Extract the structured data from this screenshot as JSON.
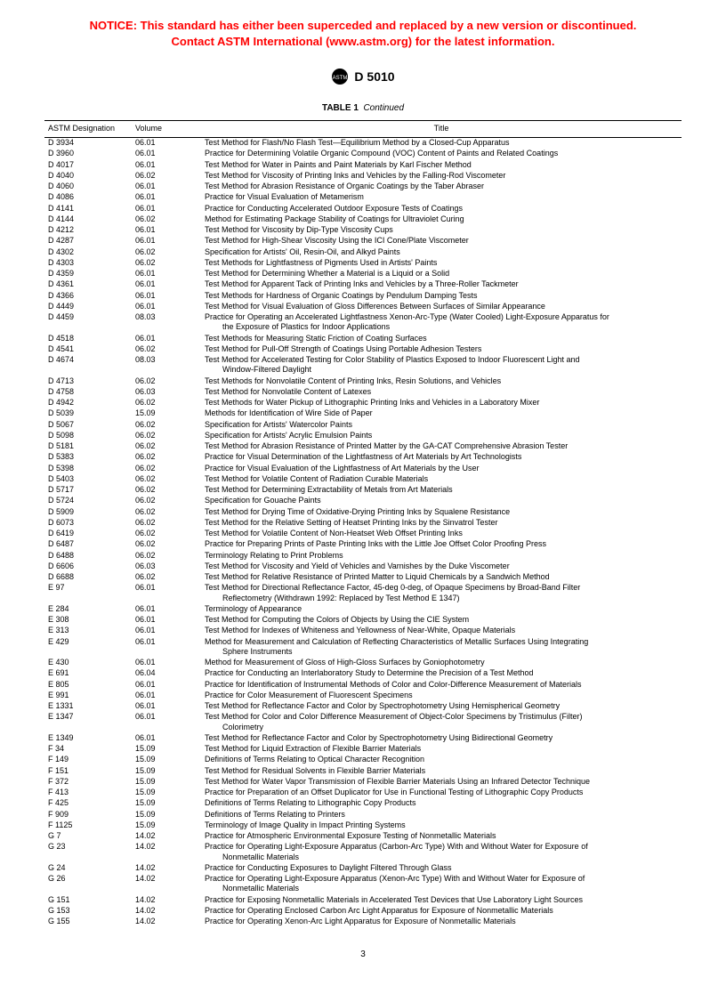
{
  "notice": {
    "line1": "NOTICE: This standard has either been superceded and replaced by a new version or discontinued.",
    "line2": "Contact ASTM International (www.astm.org) for the latest information."
  },
  "standard_number": "D 5010",
  "table_caption_label": "TABLE  1",
  "table_caption_suffix": "Continued",
  "columns": {
    "designation": "ASTM Designation",
    "volume": "Volume",
    "title": "Title"
  },
  "rows": [
    {
      "d": "D 3934",
      "v": "06.01",
      "t": "Test Method for Flash/No Flash Test—Equilibrium Method by a Closed-Cup Apparatus"
    },
    {
      "d": "D 3960",
      "v": "06.01",
      "t": "Practice for Determining Volatile Organic Compound (VOC) Content of Paints and Related Coatings"
    },
    {
      "d": "D 4017",
      "v": "06.01",
      "t": "Test Method for Water in Paints and Paint Materials by Karl Fischer Method"
    },
    {
      "d": "D 4040",
      "v": "06.02",
      "t": "Test Method for Viscosity of Printing Inks and Vehicles by the Falling-Rod Viscometer"
    },
    {
      "d": "D 4060",
      "v": "06.01",
      "t": "Test Method for Abrasion Resistance of Organic Coatings by the Taber Abraser"
    },
    {
      "d": "D 4086",
      "v": "06.01",
      "t": "Practice for Visual Evaluation of Metamerism"
    },
    {
      "d": "D 4141",
      "v": "06.01",
      "t": "Practice for Conducting Accelerated Outdoor Exposure Tests of Coatings"
    },
    {
      "d": "D 4144",
      "v": "06.02",
      "t": "Method for Estimating Package Stability of Coatings for Ultraviolet Curing"
    },
    {
      "d": "D 4212",
      "v": "06.01",
      "t": "Test Method for Viscosity by Dip-Type Viscosity Cups"
    },
    {
      "d": "D 4287",
      "v": "06.01",
      "t": "Test Method for High-Shear Viscosity Using the ICI Cone/Plate Viscometer"
    },
    {
      "d": "D 4302",
      "v": "06.02",
      "t": "Specification for Artists' Oil, Resin-Oil, and Alkyd Paints"
    },
    {
      "d": "D 4303",
      "v": "06.02",
      "t": "Test Methods for Lightfastness of Pigments Used in Artists' Paints"
    },
    {
      "d": "D 4359",
      "v": "06.01",
      "t": "Test Method for Determining Whether a Material is a Liquid or a Solid"
    },
    {
      "d": "D 4361",
      "v": "06.01",
      "t": "Test Method for Apparent Tack of Printing Inks and Vehicles by a Three-Roller Tackmeter"
    },
    {
      "d": "D 4366",
      "v": "06.01",
      "t": "Test Methods for Hardness of Organic Coatings by Pendulum Damping Tests"
    },
    {
      "d": "D 4449",
      "v": "06.01",
      "t": "Test Method for Visual Evaluation of Gloss Differences Between Surfaces of Similar Appearance"
    },
    {
      "d": "D 4459",
      "v": "08.03",
      "t": "Practice for Operating an Accelerated Lightfastness Xenon-Arc-Type (Water Cooled) Light-Exposure Apparatus for",
      "t2": "the Exposure of Plastics for Indoor Applications"
    },
    {
      "d": "D 4518",
      "v": "06.01",
      "t": "Test Methods for Measuring Static Friction of Coating Surfaces"
    },
    {
      "d": "D 4541",
      "v": "06.02",
      "t": "Test Method for Pull-Off Strength of Coatings Using Portable Adhesion Testers"
    },
    {
      "d": "D 4674",
      "v": "08.03",
      "t": "Test Method for Accelerated Testing for Color Stability of Plastics Exposed to Indoor Fluorescent Light and",
      "t2": "Window-Filtered Daylight"
    },
    {
      "d": "D 4713",
      "v": "06.02",
      "t": "Test Methods for Nonvolatile Content of Printing Inks, Resin Solutions, and Vehicles"
    },
    {
      "d": "D 4758",
      "v": "06.03",
      "t": "Test Method for Nonvolatile Content of Latexes"
    },
    {
      "d": "D 4942",
      "v": "06.02",
      "t": "Test Methods for Water Pickup of Lithographic Printing Inks and Vehicles in a Laboratory Mixer"
    },
    {
      "d": "D 5039",
      "v": "15.09",
      "t": "Methods for Identification of Wire Side of Paper"
    },
    {
      "d": "D 5067",
      "v": "06.02",
      "t": "Specification for Artists' Watercolor Paints"
    },
    {
      "d": "D 5098",
      "v": "06.02",
      "t": "Specification for Artists' Acrylic Emulsion Paints"
    },
    {
      "d": "D 5181",
      "v": "06.02",
      "t": "Test Method for Abrasion Resistance of Printed Matter by the GA-CAT Comprehensive Abrasion Tester"
    },
    {
      "d": "D 5383",
      "v": "06.02",
      "t": "Practice for Visual Determination of the Lightfastness of Art Materials by Art Technologists"
    },
    {
      "d": "D 5398",
      "v": "06.02",
      "t": "Practice for Visual Evaluation of the Lightfastness of Art Materials by the User"
    },
    {
      "d": "D 5403",
      "v": "06.02",
      "t": "Test Method for Volatile Content of Radiation Curable Materials"
    },
    {
      "d": "D 5717",
      "v": "06.02",
      "t": "Test Method for Determining Extractability of Metals from Art Materials"
    },
    {
      "d": "D 5724",
      "v": "06.02",
      "t": "Specification for Gouache Paints"
    },
    {
      "d": "D 5909",
      "v": "06.02",
      "t": "Test Method for Drying Time of Oxidative-Drying Printing Inks by Squalene Resistance"
    },
    {
      "d": "D 6073",
      "v": "06.02",
      "t": "Test Method for the Relative Setting of Heatset Printing Inks by the Sinvatrol Tester"
    },
    {
      "d": "D 6419",
      "v": "06.02",
      "t": "Test Method for Volatile Content of Non-Heatset Web Offset Printing Inks"
    },
    {
      "d": "D 6487",
      "v": "06.02",
      "t": "Practice for Preparing Prints of Paste Printing Inks with the Little Joe Offset Color Proofing Press"
    },
    {
      "d": "D 6488",
      "v": "06.02",
      "t": "Terminology Relating to Print Problems"
    },
    {
      "d": "D 6606",
      "v": "06.03",
      "t": "Test Method for Viscosity and Yield of Vehicles and Varnishes by the Duke Viscometer"
    },
    {
      "d": "D 6688",
      "v": "06.02",
      "t": "Test Method for Relative Resistance of Printed Matter to Liquid Chemicals by a Sandwich Method"
    },
    {
      "d": "E 97",
      "v": "06.01",
      "t": "Test Method for Directional Reflectance Factor, 45-deg 0-deg, of Opaque Specimens by Broad-Band Filter",
      "t2": "Reflectometry (Withdrawn 1992: Replaced by Test Method E 1347)"
    },
    {
      "d": "E 284",
      "v": "06.01",
      "t": "Terminology of Appearance"
    },
    {
      "d": "E 308",
      "v": "06.01",
      "t": "Test Method for Computing the Colors of Objects by Using the CIE System"
    },
    {
      "d": "E 313",
      "v": "06.01",
      "t": "Test Method for Indexes of Whiteness and Yellowness of Near-White, Opaque Materials"
    },
    {
      "d": "E 429",
      "v": "06.01",
      "t": "Method for Measurement and Calculation of Reflecting Characteristics of Metallic Surfaces Using Integrating",
      "t2": "Sphere Instruments"
    },
    {
      "d": "E 430",
      "v": "06.01",
      "t": "Method for Measurement of Gloss of High-Gloss Surfaces by Goniophotometry"
    },
    {
      "d": "E 691",
      "v": "06.04",
      "t": "Practice for Conducting an Interlaboratory Study to Determine the Precision of a Test Method"
    },
    {
      "d": "E 805",
      "v": "06.01",
      "t": "Practice for Identification of Instrumental Methods of Color and Color-Difference Measurement of Materials"
    },
    {
      "d": "E 991",
      "v": "06.01",
      "t": "Practice for Color Measurement of Fluorescent Specimens"
    },
    {
      "d": "E 1331",
      "v": "06.01",
      "t": "Test Method for Reflectance Factor and Color by Spectrophotometry Using Hemispherical Geometry"
    },
    {
      "d": "E 1347",
      "v": "06.01",
      "t": "Test Method for Color and Color Difference Measurement of Object-Color Specimens by Tristimulus (Filter)",
      "t2": "Colorimetry"
    },
    {
      "d": "E 1349",
      "v": "06.01",
      "t": "Test Method for Reflectance Factor and Color by Spectrophotometry Using Bidirectional Geometry"
    },
    {
      "d": "F 34",
      "v": "15.09",
      "t": "Test Method for Liquid Extraction of Flexible Barrier Materials"
    },
    {
      "d": "F 149",
      "v": "15.09",
      "t": "Definitions of Terms Relating to Optical Character Recognition"
    },
    {
      "d": "F 151",
      "v": "15.09",
      "t": "Test Method for Residual Solvents in Flexible Barrier Materials"
    },
    {
      "d": "F 372",
      "v": "15.09",
      "t": "Test Method for Water Vapor Transmission of Flexible Barrier Materials Using an Infrared Detector Technique"
    },
    {
      "d": "F 413",
      "v": "15.09",
      "t": "Practice for Preparation of an Offset Duplicator for Use in Functional Testing of Lithographic Copy Products"
    },
    {
      "d": "F 425",
      "v": "15.09",
      "t": "Definitions of Terms Relating to Lithographic Copy Products"
    },
    {
      "d": "F 909",
      "v": "15.09",
      "t": "Definitions of Terms Relating to Printers"
    },
    {
      "d": "F 1125",
      "v": "15.09",
      "t": "Terminology of Image Quality in Impact Printing Systems"
    },
    {
      "d": "G 7",
      "v": "14.02",
      "t": "Practice for Atmospheric Environmental Exposure Testing of Nonmetallic Materials"
    },
    {
      "d": "G 23",
      "v": "14.02",
      "t": "Practice for Operating Light-Exposure Apparatus (Carbon-Arc Type) With and Without Water for Exposure of",
      "t2": "Nonmetallic Materials"
    },
    {
      "d": "G 24",
      "v": "14.02",
      "t": "Practice for Conducting Exposures to Daylight Filtered Through Glass"
    },
    {
      "d": "G 26",
      "v": "14.02",
      "t": "Practice for Operating Light-Exposure Apparatus (Xenon-Arc Type) With and Without Water for Exposure of",
      "t2": "Nonmetallic Materials"
    },
    {
      "d": "G 151",
      "v": "14.02",
      "t": "Practice for Exposing Nonmetallic Materials in Accelerated Test Devices that Use Laboratory Light Sources"
    },
    {
      "d": "G 153",
      "v": "14.02",
      "t": "Practice for Operating Enclosed Carbon Arc Light Apparatus for Exposure of Nonmetallic Materials"
    },
    {
      "d": "G 155",
      "v": "14.02",
      "t": "Practice for Operating Xenon-Arc Light Apparatus for Exposure of Nonmetallic Materials"
    }
  ],
  "page_number": "3"
}
